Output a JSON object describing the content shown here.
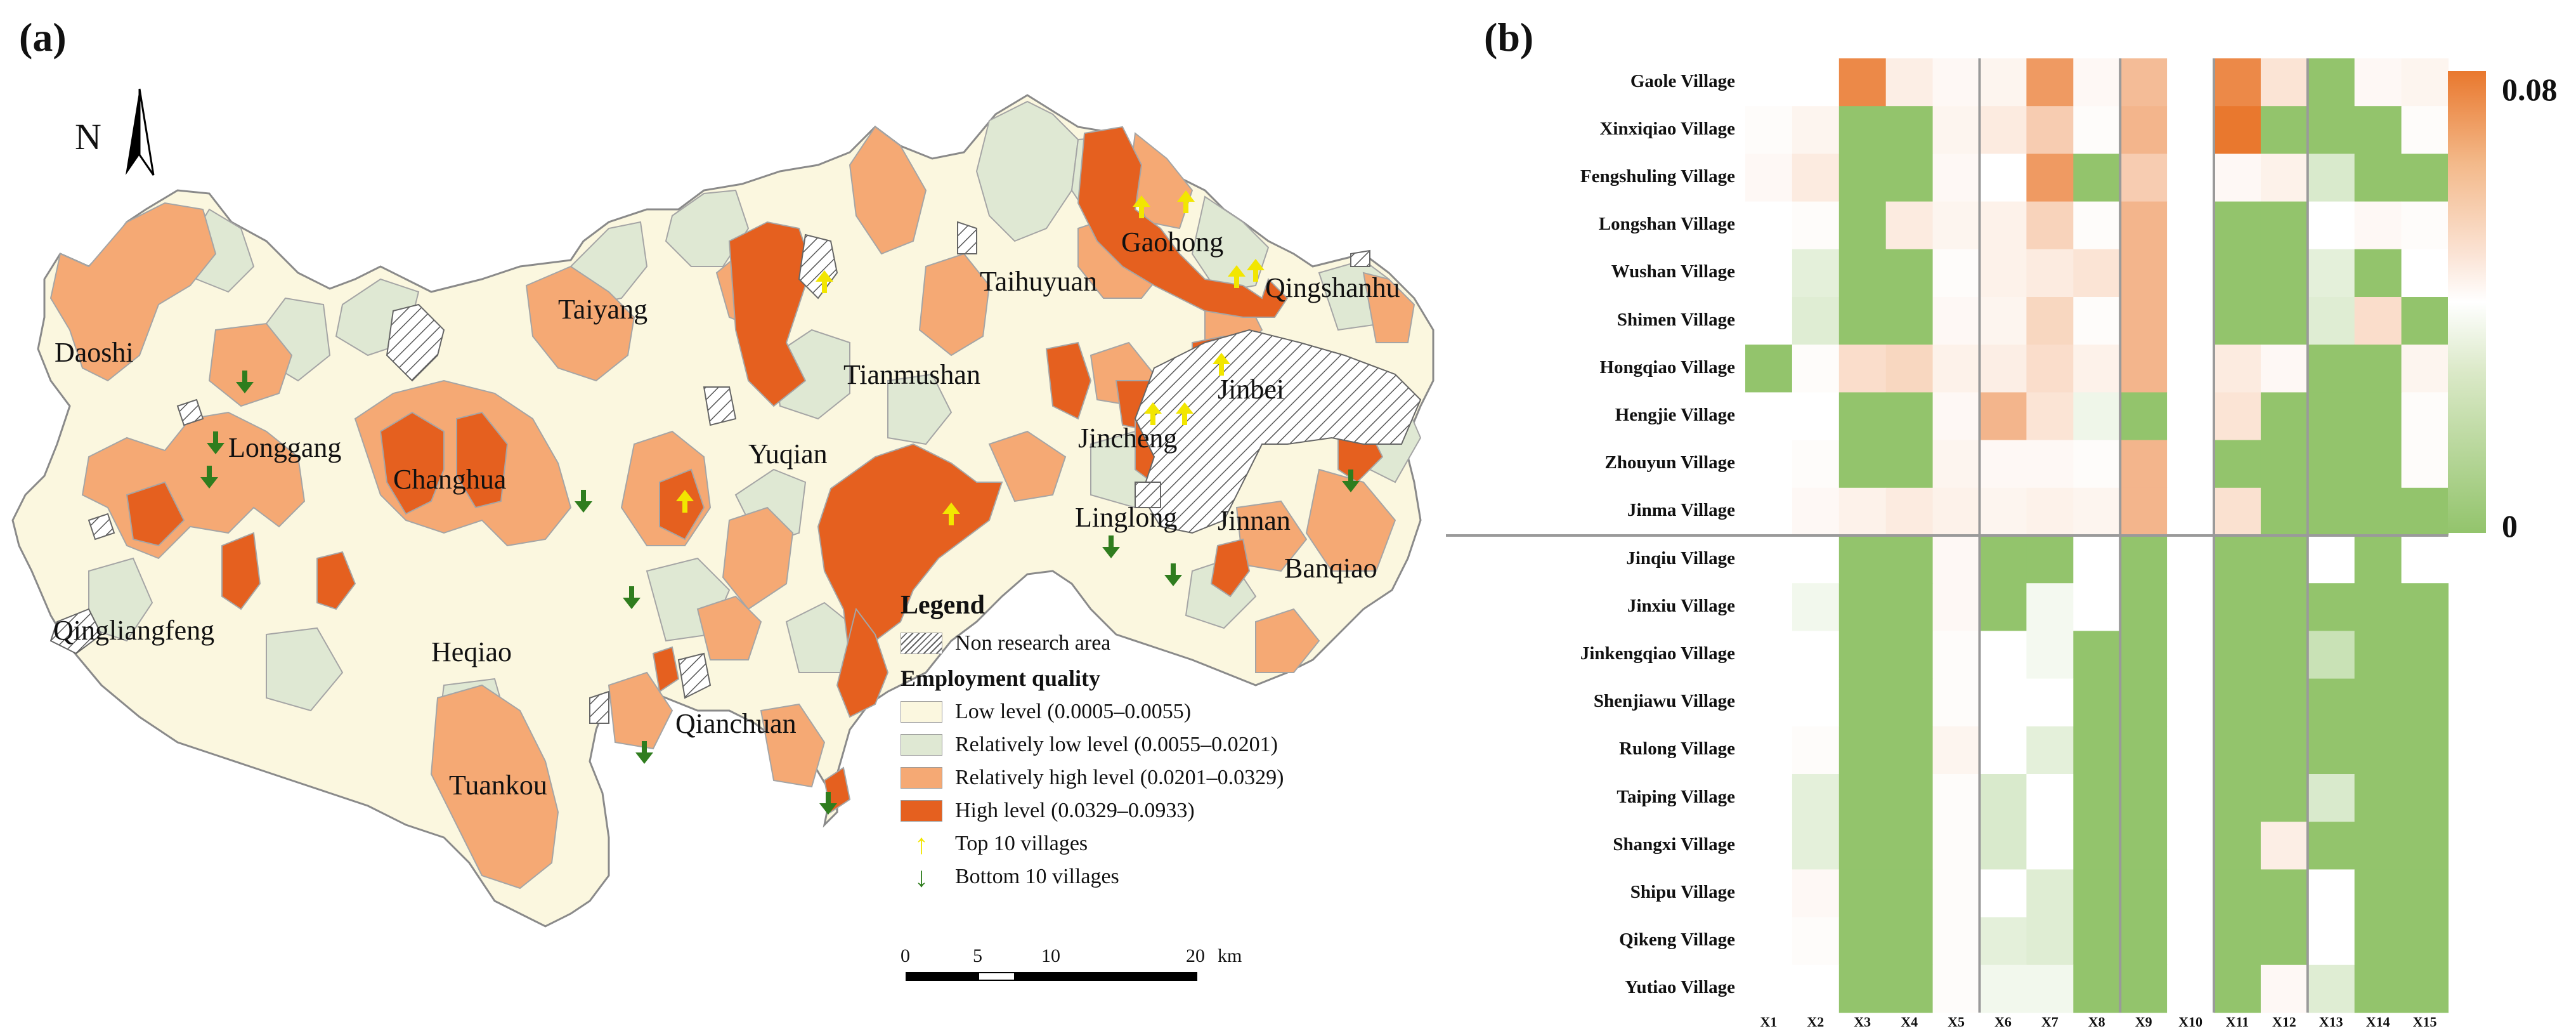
{
  "map": {
    "panel_label": "(a)",
    "north": "N",
    "towns": [
      {
        "name": "Daoshi"
      },
      {
        "name": "Longgang"
      },
      {
        "name": "Changhua"
      },
      {
        "name": "Taiyang"
      },
      {
        "name": "Tianmushan"
      },
      {
        "name": "Taihuyuan"
      },
      {
        "name": "Gaohong"
      },
      {
        "name": "Qingshanhu"
      },
      {
        "name": "Yuqian"
      },
      {
        "name": "Jinbei"
      },
      {
        "name": "Jincheng"
      },
      {
        "name": "Linglong"
      },
      {
        "name": "Jinnan"
      },
      {
        "name": "Banqiao"
      },
      {
        "name": "Qingliangfeng"
      },
      {
        "name": "Heqiao"
      },
      {
        "name": "Qianchuan"
      },
      {
        "name": "Tuankou"
      }
    ],
    "legend": {
      "title": "Legend",
      "non_research": "Non research area",
      "quality_title": "Employment quality",
      "classes": [
        {
          "label": "Low level (0.0005–0.0055)",
          "color": "#fbf7df"
        },
        {
          "label": "Relatively low level (0.0055–0.0201)",
          "color": "#dfe8d3"
        },
        {
          "label": "Relatively high level (0.0201–0.0329)",
          "color": "#f5a974"
        },
        {
          "label": "High level (0.0329–0.0933)",
          "color": "#e5601f"
        }
      ],
      "top": "Top 10 villages",
      "bottom": "Bottom 10 villages",
      "top_color": "#f2e600",
      "bottom_color": "#2f7d1e"
    },
    "scale": {
      "ticks": [
        "0",
        "5",
        "10",
        "20"
      ],
      "unit": "km"
    }
  },
  "heatmap": {
    "panel_label": "(b)",
    "rows": [
      "Gaole Village",
      "Xinxiqiao Village",
      "Fengshuling Village",
      "Longshan Village",
      "Wushan Village",
      "Shimen Village",
      "Hongqiao Village",
      "Hengjie Village",
      "Zhouyun Village",
      "Jinma Village",
      "Jinqiu Village",
      "Jinxiu Village",
      "Jinkengqiao Village",
      "Shenjiawu Village",
      "Rulong Village",
      "Taiping Village",
      "Shangxi Village",
      "Shipu Village",
      "Qikeng Village",
      "Yutiao Village"
    ],
    "cols": [
      "X1",
      "X2",
      "X3",
      "X4",
      "X5",
      "X6",
      "X7",
      "X8",
      "X9",
      "X10",
      "X11",
      "X12",
      "X13",
      "X14",
      "X15"
    ],
    "colorbar_max": "0.08",
    "colorbar_min": "0",
    "values": [
      [
        0.04,
        0.04,
        0.075,
        0.045,
        0.042,
        0.043,
        0.07,
        0.042,
        0.06,
        0.04,
        0.075,
        0.048,
        0,
        0.042,
        0.043
      ],
      [
        0.041,
        0.043,
        0,
        0,
        0.043,
        0.046,
        0.055,
        0.041,
        0.062,
        0.04,
        0.08,
        0,
        0,
        0,
        0.041
      ],
      [
        0.042,
        0.046,
        0,
        0,
        0.042,
        0.04,
        0.07,
        0,
        0.055,
        0.04,
        0.042,
        0.044,
        0.026,
        0,
        0
      ],
      [
        0.04,
        0.041,
        0,
        0.046,
        0.043,
        0.044,
        0.053,
        0.041,
        0.062,
        0.04,
        0,
        0,
        0.04,
        0.042,
        0.041
      ],
      [
        0.04,
        0.03,
        0,
        0,
        0.041,
        0.044,
        0.046,
        0.048,
        0.062,
        0.04,
        0,
        0,
        0.03,
        0,
        0.04
      ],
      [
        0.04,
        0.028,
        0,
        0,
        0.042,
        0.043,
        0.052,
        0.041,
        0.062,
        0.04,
        0,
        0,
        0.028,
        0.05,
        0
      ],
      [
        0,
        0.041,
        0.05,
        0.052,
        0.044,
        0.045,
        0.05,
        0.044,
        0.062,
        0.04,
        0.046,
        0.042,
        0,
        0,
        0.043
      ],
      [
        0.04,
        0.04,
        0,
        0,
        0.042,
        0.062,
        0.048,
        0.034,
        0,
        0.04,
        0.048,
        0,
        0,
        0,
        0.041
      ],
      [
        0.04,
        0.041,
        0,
        0,
        0.043,
        0.042,
        0.042,
        0.041,
        0.062,
        0.04,
        0,
        0,
        0,
        0,
        0.041
      ],
      [
        0.04,
        0.042,
        0.044,
        0.046,
        0.044,
        0.043,
        0.044,
        0.043,
        0.062,
        0.04,
        0.049,
        0,
        0,
        0,
        0
      ],
      [
        0.04,
        0.04,
        0,
        0,
        0.042,
        0,
        0,
        0.04,
        0,
        0.04,
        0,
        0,
        0.04,
        0,
        0.04
      ],
      [
        0.04,
        0.035,
        0,
        0,
        0.042,
        0,
        0.036,
        0.04,
        0,
        0.04,
        0,
        0,
        0,
        0,
        0
      ],
      [
        0.04,
        0.04,
        0,
        0,
        0.041,
        0.04,
        0.036,
        0,
        0,
        0.04,
        0,
        0,
        0.02,
        0,
        0
      ],
      [
        0.04,
        0.04,
        0,
        0,
        0.041,
        0.04,
        0.04,
        0,
        0,
        0.04,
        0,
        0,
        0,
        0,
        0
      ],
      [
        0.04,
        0.041,
        0,
        0,
        0.043,
        0.04,
        0.03,
        0,
        0,
        0.04,
        0,
        0,
        0,
        0,
        0
      ],
      [
        0.04,
        0.03,
        0,
        0,
        0.041,
        0.026,
        0.04,
        0,
        0,
        0.04,
        0,
        0,
        0.026,
        0,
        0
      ],
      [
        0.04,
        0.03,
        0,
        0,
        0.041,
        0.026,
        0.04,
        0,
        0,
        0.04,
        0,
        0.045,
        0,
        0,
        0
      ],
      [
        0.04,
        0.042,
        0,
        0,
        0.041,
        0.04,
        0.028,
        0,
        0,
        0.04,
        0,
        0,
        0.04,
        0,
        0
      ],
      [
        0.04,
        0.041,
        0,
        0,
        0.041,
        0.03,
        0.028,
        0,
        0,
        0.04,
        0,
        0,
        0.04,
        0,
        0
      ],
      [
        0.04,
        0.04,
        0,
        0,
        0.041,
        0.035,
        0.035,
        0,
        0,
        0.04,
        0,
        0.042,
        0.028,
        0,
        0
      ]
    ]
  }
}
